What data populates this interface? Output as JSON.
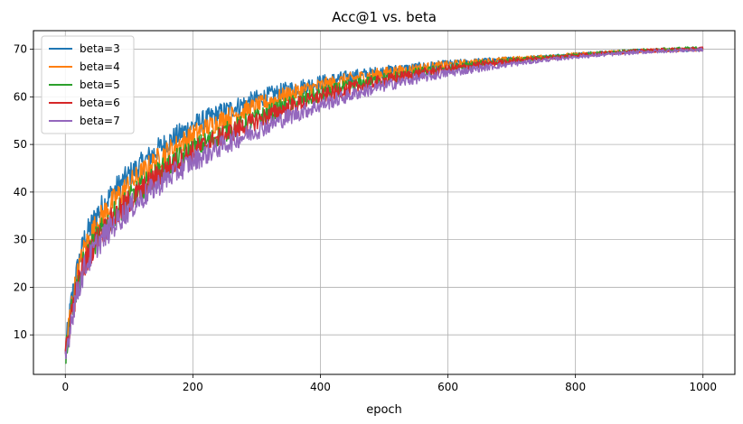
{
  "chart_data": {
    "type": "line",
    "title": "Acc@1 vs. beta",
    "xlabel": "epoch",
    "ylabel": "",
    "xlim": [
      -50,
      1050
    ],
    "ylim": [
      1.7,
      73.9
    ],
    "xticks": [
      0,
      200,
      400,
      600,
      800,
      1000
    ],
    "yticks": [
      10,
      20,
      30,
      40,
      50,
      60,
      70
    ],
    "grid": true,
    "legend_position": "top-left",
    "series": [
      {
        "name": "beta=3",
        "color": "#1f77b4",
        "x": [
          0,
          5,
          10,
          20,
          30,
          50,
          75,
          100,
          150,
          200,
          250,
          300,
          350,
          400,
          450,
          500,
          550,
          600,
          650,
          700,
          750,
          800,
          850,
          900,
          950,
          1000
        ],
        "y": [
          6.0,
          12.0,
          17.5,
          24.5,
          30.0,
          35.5,
          40.0,
          43.5,
          49.5,
          54.0,
          57.0,
          59.5,
          61.5,
          63.0,
          64.3,
          65.3,
          66.1,
          66.8,
          67.4,
          67.9,
          68.4,
          68.9,
          69.3,
          69.6,
          69.8,
          70.0
        ]
      },
      {
        "name": "beta=4",
        "color": "#ff7f0e",
        "x": [
          0,
          5,
          10,
          20,
          30,
          50,
          75,
          100,
          150,
          200,
          250,
          300,
          350,
          400,
          450,
          500,
          550,
          600,
          650,
          700,
          750,
          800,
          850,
          900,
          950,
          1000
        ],
        "y": [
          5.5,
          11.5,
          16.5,
          23.0,
          28.0,
          33.5,
          38.0,
          41.5,
          47.5,
          52.0,
          55.5,
          58.0,
          60.5,
          62.3,
          63.8,
          65.0,
          65.9,
          66.7,
          67.3,
          67.9,
          68.4,
          68.9,
          69.3,
          69.6,
          69.9,
          70.0
        ]
      },
      {
        "name": "beta=5",
        "color": "#2ca02c",
        "x": [
          0,
          5,
          10,
          20,
          30,
          50,
          75,
          100,
          150,
          200,
          250,
          300,
          350,
          400,
          450,
          500,
          550,
          600,
          650,
          700,
          750,
          800,
          850,
          900,
          950,
          1000
        ],
        "y": [
          5.5,
          10.5,
          15.5,
          21.0,
          25.5,
          30.5,
          35.0,
          38.5,
          44.5,
          49.0,
          52.5,
          55.5,
          58.3,
          60.5,
          62.3,
          63.8,
          65.0,
          66.0,
          66.9,
          67.6,
          68.2,
          68.8,
          69.3,
          69.7,
          70.0,
          70.2
        ]
      },
      {
        "name": "beta=6",
        "color": "#d62728",
        "x": [
          0,
          5,
          10,
          20,
          30,
          50,
          75,
          100,
          150,
          200,
          250,
          300,
          350,
          400,
          450,
          500,
          550,
          600,
          650,
          700,
          750,
          800,
          850,
          900,
          950,
          1000
        ],
        "y": [
          5.0,
          10.0,
          15.0,
          20.5,
          25.0,
          30.0,
          34.5,
          38.0,
          44.0,
          48.5,
          52.0,
          55.0,
          57.8,
          60.0,
          61.9,
          63.5,
          64.8,
          65.8,
          66.7,
          67.5,
          68.1,
          68.7,
          69.2,
          69.6,
          69.9,
          70.1
        ]
      },
      {
        "name": "beta=7",
        "color": "#9467bd",
        "x": [
          0,
          5,
          10,
          20,
          30,
          50,
          75,
          100,
          150,
          200,
          250,
          300,
          350,
          400,
          450,
          500,
          550,
          600,
          650,
          700,
          750,
          800,
          850,
          900,
          950,
          1000
        ],
        "y": [
          4.5,
          9.5,
          14.0,
          19.5,
          24.0,
          29.0,
          33.0,
          36.5,
          42.0,
          46.5,
          50.0,
          53.0,
          55.8,
          58.3,
          60.5,
          62.3,
          63.8,
          65.0,
          66.0,
          66.9,
          67.7,
          68.4,
          68.9,
          69.4,
          69.7,
          69.9
        ]
      }
    ]
  }
}
